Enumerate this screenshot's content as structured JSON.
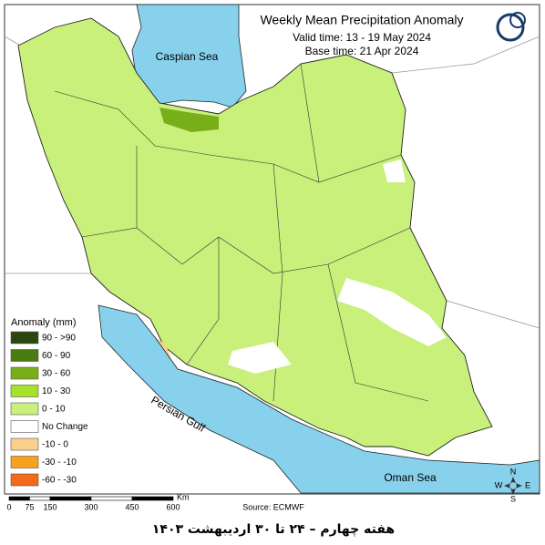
{
  "title": "Weekly Mean Precipitation Anomaly",
  "valid_time": "Valid time: 13 - 19 May 2024",
  "base_time": "Base time: 21 Apr 2024",
  "legend": {
    "title": "Anomaly (mm)",
    "items": [
      {
        "label": "90 - >90",
        "color": "#2b4710"
      },
      {
        "label": "60 - 90",
        "color": "#4a7a12"
      },
      {
        "label": "30 - 60",
        "color": "#78ae1a"
      },
      {
        "label": "10 - 30",
        "color": "#a6e22a"
      },
      {
        "label": "0 - 10",
        "color": "#c8f07a"
      },
      {
        "label": "No Change",
        "color": "#ffffff"
      },
      {
        "label": "-10 - 0",
        "color": "#fbd08a"
      },
      {
        "label": "-30 - -10",
        "color": "#f7a21c"
      },
      {
        "label": "-60 - -30",
        "color": "#f26a1a"
      }
    ]
  },
  "seas": {
    "caspian": "Caspian Sea",
    "persian_gulf": "Persian Gulf",
    "oman_sea": "Oman Sea"
  },
  "scale_bar": {
    "ticks": [
      0,
      75,
      150,
      300,
      450,
      600
    ],
    "unit": "Km"
  },
  "compass": {
    "n": "N",
    "s": "S",
    "e": "E",
    "w": "W"
  },
  "source": "Source: ECMWF",
  "caption": "هفته چهارم – ۲۴ تا ۳۰ اردیبهشت ۱۴۰۳"
}
